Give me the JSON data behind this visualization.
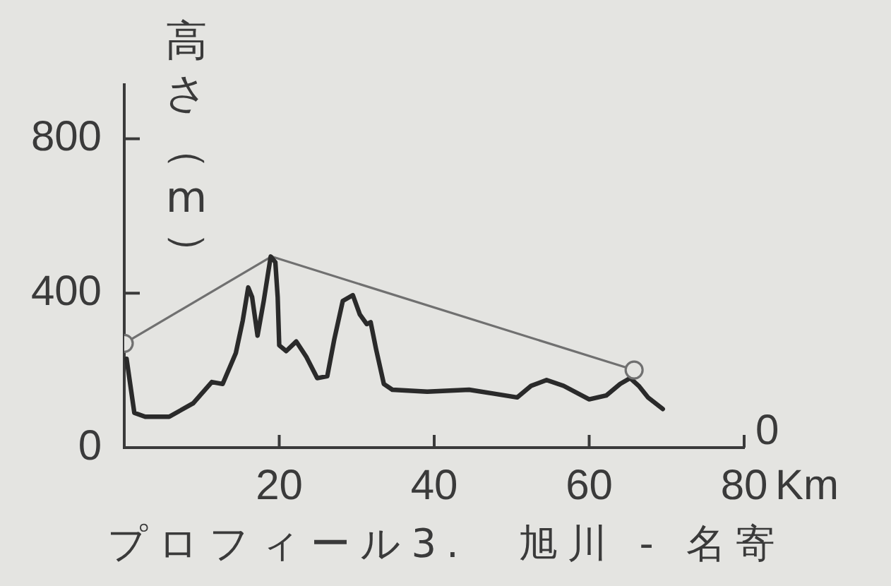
{
  "chart_data": {
    "type": "line",
    "title": "プロフィール3.　旭川 - 名寄",
    "ylabel": "高さ（m）",
    "xlabel": "Km",
    "xlim": [
      0,
      80
    ],
    "xticks": [
      20,
      40,
      60,
      80
    ],
    "ylim": [
      0,
      940
    ],
    "yticks": [
      0,
      400,
      800
    ],
    "annotations": [
      "0"
    ],
    "series": [
      {
        "color": "#2a2a2a",
        "marker": "none",
        "x": [
          0.3,
          1.3,
          2.7,
          5.8,
          8.9,
          11.3,
          12.7,
          14.4,
          15.3,
          16.0,
          16.5,
          17.2,
          18.0,
          18.9,
          19.5,
          19.8,
          20.0,
          20.9,
          22.2,
          23.5,
          24.9,
          26.2,
          27.1,
          28.2,
          29.5,
          30.4,
          31.3,
          31.8,
          32.5,
          33.5,
          34.6,
          39.1,
          44.5,
          47.6,
          50.7,
          52.5,
          54.5,
          56.7,
          60.0,
          62.2,
          64.0,
          65.3,
          66.4,
          67.6,
          69.5
        ],
        "values": [
          230,
          90,
          80,
          80,
          115,
          170,
          165,
          245,
          330,
          415,
          390,
          290,
          380,
          495,
          480,
          390,
          265,
          250,
          275,
          235,
          180,
          185,
          280,
          380,
          395,
          345,
          320,
          325,
          255,
          165,
          150,
          145,
          150,
          140,
          130,
          160,
          175,
          160,
          125,
          135,
          165,
          180,
          160,
          130,
          100
        ]
      },
      {
        "color": "#707070",
        "marker": "none",
        "x": [
          0,
          19,
          65.8
        ],
        "values": [
          270,
          495,
          201
        ]
      },
      {
        "type": "scatter",
        "color": "#707070",
        "marker": "circle",
        "x": [
          0,
          65.8
        ],
        "values": [
          270,
          201
        ]
      }
    ]
  }
}
